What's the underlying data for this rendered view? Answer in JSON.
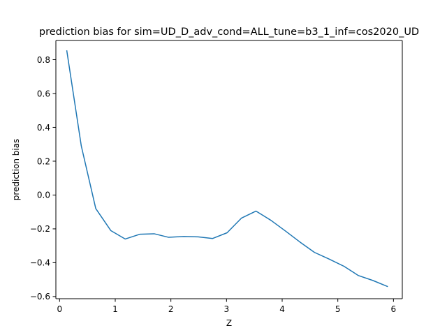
{
  "chart_data": {
    "type": "line",
    "title": "prediction bias for sim=UD_D_adv_cond=ALL_tune=b3_1_inf=cos2020_UD",
    "xlabel": "Z",
    "ylabel": "prediction bias",
    "xlim": [
      -0.0667,
      6.1587
    ],
    "ylim": [
      -0.6128,
      0.9134
    ],
    "x_ticks": [
      0,
      1,
      2,
      3,
      4,
      5,
      6
    ],
    "y_ticks": [
      -0.6,
      -0.4,
      -0.2,
      0.0,
      0.2,
      0.4,
      0.6,
      0.8
    ],
    "x_tick_labels": [
      "0",
      "1",
      "2",
      "3",
      "4",
      "5",
      "6"
    ],
    "y_tick_labels": [
      "−0.6",
      "−0.4",
      "−0.2",
      "0.0",
      "0.2",
      "0.4",
      "0.6",
      "0.8"
    ],
    "grid": false,
    "series": [
      {
        "color": "#1f77b4",
        "x": [
          0.13,
          0.39,
          0.65,
          0.92,
          1.18,
          1.44,
          1.7,
          1.96,
          2.23,
          2.49,
          2.75,
          3.01,
          3.27,
          3.53,
          3.8,
          4.06,
          4.32,
          4.58,
          4.84,
          5.11,
          5.37,
          5.63,
          5.89
        ],
        "y": [
          0.852,
          0.29,
          -0.08,
          -0.21,
          -0.26,
          -0.232,
          -0.229,
          -0.25,
          -0.245,
          -0.247,
          -0.257,
          -0.223,
          -0.136,
          -0.095,
          -0.15,
          -0.213,
          -0.278,
          -0.339,
          -0.378,
          -0.421,
          -0.476,
          -0.505,
          -0.54
        ]
      }
    ]
  }
}
